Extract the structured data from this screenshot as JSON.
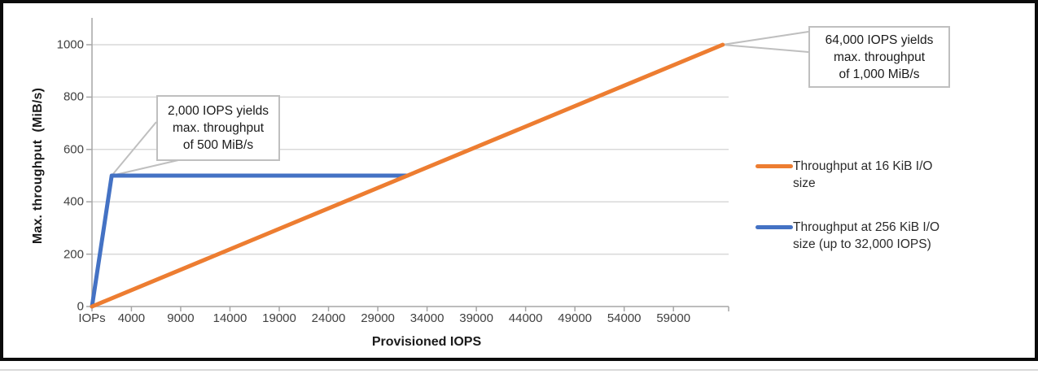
{
  "chart_data": {
    "type": "line",
    "xlabel": "Provisioned IOPS",
    "ylabel": "Max. throughput  (MiB/s)",
    "xlim": [
      0,
      64600
    ],
    "ylim": [
      0,
      1000
    ],
    "grid": "horizontal",
    "legend_position": "right",
    "yticks": [
      0,
      200,
      400,
      600,
      800,
      1000
    ],
    "xticks": [
      {
        "v": 0,
        "label": "IOPs"
      },
      {
        "v": 4000,
        "label": "4000"
      },
      {
        "v": 9000,
        "label": "9000"
      },
      {
        "v": 14000,
        "label": "14000"
      },
      {
        "v": 19000,
        "label": "19000"
      },
      {
        "v": 24000,
        "label": "24000"
      },
      {
        "v": 29000,
        "label": "29000"
      },
      {
        "v": 34000,
        "label": "34000"
      },
      {
        "v": 39000,
        "label": "39000"
      },
      {
        "v": 44000,
        "label": "44000"
      },
      {
        "v": 49000,
        "label": "49000"
      },
      {
        "v": 54000,
        "label": "54000"
      },
      {
        "v": 59000,
        "label": "59000"
      },
      {
        "v": 64600,
        "label": ""
      }
    ],
    "series": [
      {
        "name": "Throughput at 16 KiB I/O size",
        "color": "#ED7D31",
        "points": [
          [
            0,
            0
          ],
          [
            64000,
            1000
          ]
        ]
      },
      {
        "name": "Throughput at 256 KiB I/O size (up to 32,000 IOPS)",
        "color": "#4472C4",
        "points": [
          [
            0,
            0
          ],
          [
            2000,
            500
          ],
          [
            32000,
            500
          ]
        ]
      }
    ],
    "annotations": [
      {
        "anchor": [
          2000,
          500
        ],
        "lines": [
          "2,000 IOPS yields",
          "max. throughput",
          "of 500 MiB/s"
        ]
      },
      {
        "anchor": [
          64000,
          1000
        ],
        "lines": [
          "64,000 IOPS yields",
          "max. throughput",
          "of 1,000 MiB/s"
        ]
      }
    ],
    "colors": {
      "gridline": "#d9d9d9",
      "axis": "#a6a6a6",
      "leader": "#bfbfbf",
      "tick_text": "#404040",
      "frame": "#0b0b0b"
    }
  }
}
